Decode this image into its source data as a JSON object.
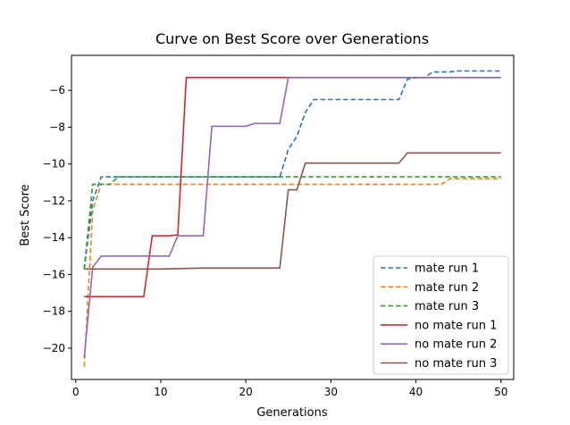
{
  "chart_data": {
    "type": "line",
    "title": "Curve on Best Score over Generations",
    "xlabel": "Generations",
    "ylabel": "Best Score",
    "xlim": [
      -0.5,
      51.5
    ],
    "ylim": [
      -21.7,
      -4.1
    ],
    "xticks": [
      0,
      10,
      20,
      30,
      40,
      50
    ],
    "yticks": [
      -20,
      -18,
      -16,
      -14,
      -12,
      -10,
      -8,
      -6
    ],
    "grid": false,
    "legend_position": "lower-right",
    "series": [
      {
        "name": "mate run 1",
        "color": "#1f77b4",
        "style": "dashed",
        "points": [
          [
            1,
            -15.7
          ],
          [
            2,
            -12.0
          ],
          [
            3,
            -10.7
          ],
          [
            4,
            -10.7
          ],
          [
            5,
            -10.7
          ],
          [
            10,
            -10.7
          ],
          [
            15,
            -10.7
          ],
          [
            20,
            -10.7
          ],
          [
            22,
            -10.7
          ],
          [
            24,
            -10.7
          ],
          [
            25,
            -9.2
          ],
          [
            26,
            -8.5
          ],
          [
            27,
            -7.2
          ],
          [
            28,
            -6.5
          ],
          [
            29,
            -6.5
          ],
          [
            30,
            -6.5
          ],
          [
            35,
            -6.5
          ],
          [
            38,
            -6.5
          ],
          [
            39,
            -5.4
          ],
          [
            40,
            -5.3
          ],
          [
            41,
            -5.3
          ],
          [
            42,
            -5.0
          ],
          [
            43,
            -5.0
          ],
          [
            44,
            -5.0
          ],
          [
            45,
            -4.95
          ],
          [
            50,
            -4.95
          ]
        ]
      },
      {
        "name": "mate run 2",
        "color": "#ff7f0e",
        "style": "dashed",
        "points": [
          [
            1,
            -21.0
          ],
          [
            2,
            -12.5
          ],
          [
            3,
            -11.1
          ],
          [
            4,
            -11.1
          ],
          [
            5,
            -11.1
          ],
          [
            10,
            -11.1
          ],
          [
            20,
            -11.1
          ],
          [
            30,
            -11.1
          ],
          [
            40,
            -11.1
          ],
          [
            43,
            -11.1
          ],
          [
            44,
            -10.8
          ],
          [
            50,
            -10.8
          ]
        ]
      },
      {
        "name": "mate run 3",
        "color": "#2ca02c",
        "style": "dashed",
        "points": [
          [
            1,
            -15.7
          ],
          [
            2,
            -11.1
          ],
          [
            3,
            -11.1
          ],
          [
            4,
            -11.1
          ],
          [
            5,
            -10.7
          ],
          [
            10,
            -10.7
          ],
          [
            20,
            -10.7
          ],
          [
            30,
            -10.7
          ],
          [
            40,
            -10.7
          ],
          [
            50,
            -10.7
          ]
        ]
      },
      {
        "name": "no mate run 1",
        "color": "#d62728",
        "style": "solid",
        "points": [
          [
            1,
            -17.2
          ],
          [
            2,
            -17.2
          ],
          [
            5,
            -17.2
          ],
          [
            8,
            -17.2
          ],
          [
            9,
            -13.9
          ],
          [
            10,
            -13.9
          ],
          [
            11,
            -13.9
          ],
          [
            12,
            -13.85
          ],
          [
            13,
            -5.3
          ],
          [
            14,
            -5.3
          ],
          [
            20,
            -5.3
          ],
          [
            30,
            -5.3
          ],
          [
            40,
            -5.3
          ],
          [
            50,
            -5.3
          ]
        ]
      },
      {
        "name": "no mate run 2",
        "color": "#9467bd",
        "style": "solid",
        "points": [
          [
            1,
            -20.5
          ],
          [
            2,
            -15.6
          ],
          [
            3,
            -15.0
          ],
          [
            4,
            -15.0
          ],
          [
            5,
            -15.0
          ],
          [
            10,
            -15.0
          ],
          [
            11,
            -15.0
          ],
          [
            12,
            -13.9
          ],
          [
            13,
            -13.9
          ],
          [
            14,
            -13.9
          ],
          [
            15,
            -13.9
          ],
          [
            16,
            -7.95
          ],
          [
            17,
            -7.95
          ],
          [
            18,
            -7.95
          ],
          [
            19,
            -7.95
          ],
          [
            20,
            -7.95
          ],
          [
            21,
            -7.8
          ],
          [
            22,
            -7.8
          ],
          [
            23,
            -7.8
          ],
          [
            24,
            -7.8
          ],
          [
            25,
            -5.3
          ],
          [
            26,
            -5.3
          ],
          [
            30,
            -5.3
          ],
          [
            40,
            -5.3
          ],
          [
            50,
            -5.3
          ]
        ]
      },
      {
        "name": "no mate run 3",
        "color": "#8c564b",
        "style": "solid",
        "points": [
          [
            1,
            -15.7
          ],
          [
            2,
            -15.7
          ],
          [
            5,
            -15.7
          ],
          [
            10,
            -15.7
          ],
          [
            15,
            -15.65
          ],
          [
            20,
            -15.65
          ],
          [
            24,
            -15.65
          ],
          [
            25,
            -11.4
          ],
          [
            26,
            -11.4
          ],
          [
            27,
            -9.95
          ],
          [
            28,
            -9.95
          ],
          [
            30,
            -9.95
          ],
          [
            35,
            -9.95
          ],
          [
            38,
            -9.95
          ],
          [
            39,
            -9.4
          ],
          [
            40,
            -9.4
          ],
          [
            45,
            -9.4
          ],
          [
            50,
            -9.4
          ]
        ]
      }
    ]
  }
}
